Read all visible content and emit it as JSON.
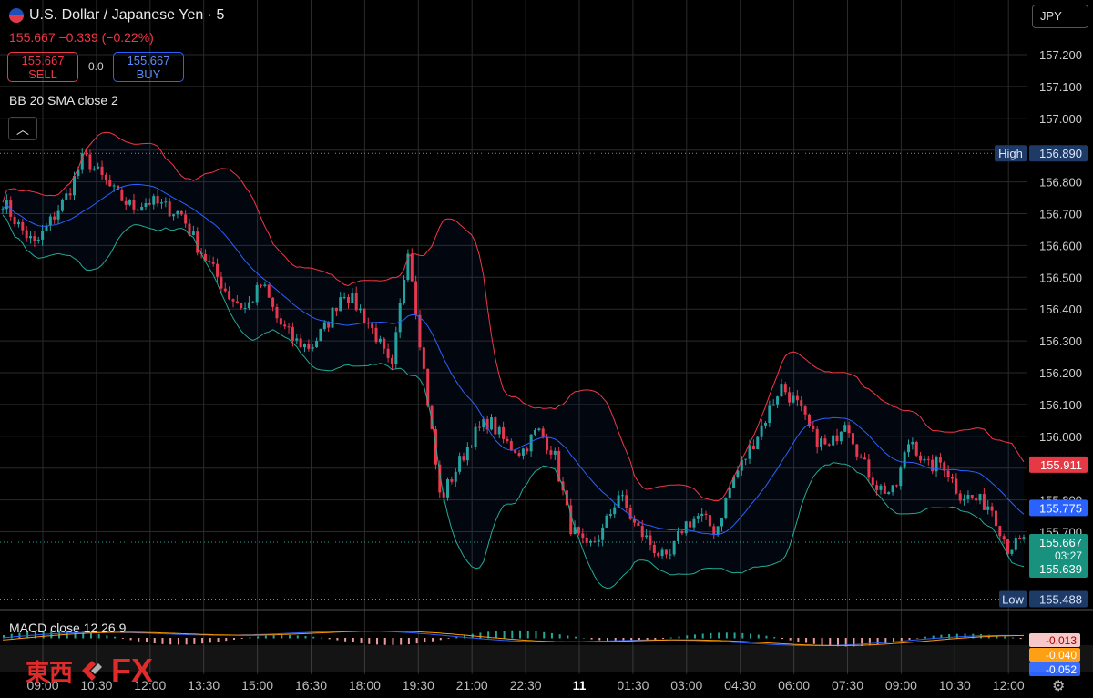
{
  "header": {
    "title": "U.S. Dollar / Japanese Yen · 5",
    "last_price": "155.667",
    "change": "−0.339",
    "change_pct": "(−0.22%)",
    "sell_price": "155.667",
    "sell_label": "SELL",
    "buy_price": "155.667",
    "buy_label": "BUY",
    "spread": "0.0",
    "currency": "JPY"
  },
  "indicator_label": "BB 20 SMA close 2",
  "macd_label": "MACD close 12 26 9",
  "collapse_icon": "chevron-up-icon",
  "settings_icon": "gear-icon",
  "logo": {
    "cjk": "東西",
    "fx": "FX"
  },
  "colors": {
    "up": "#26a69a",
    "down": "#f23645",
    "bb_upper": "#f23645",
    "bb_basis": "#2962ff",
    "bb_lower": "#22ab94",
    "macd_line": "#2962ff",
    "signal_line": "#ff9800"
  },
  "chart_data": {
    "type": "candlestick",
    "y_axis": {
      "range": [
        155.45,
        157.3
      ],
      "ticks": [
        "157.200",
        "157.100",
        "157.000",
        "156.900",
        "156.800",
        "156.700",
        "156.600",
        "156.500",
        "156.400",
        "156.300",
        "156.200",
        "156.100",
        "156.000",
        "155.900",
        "155.800",
        "155.700"
      ]
    },
    "x_axis": {
      "ticks": [
        "09:00",
        "10:30",
        "12:00",
        "13:30",
        "15:00",
        "16:30",
        "18:00",
        "19:30",
        "21:00",
        "22:30",
        "11",
        "01:30",
        "03:00",
        "04:30",
        "06:00",
        "07:30",
        "09:00",
        "10:30",
        "12:00"
      ]
    },
    "price_path": [
      156.74,
      156.66,
      156.6,
      156.68,
      156.76,
      156.88,
      156.82,
      156.76,
      156.72,
      156.74,
      156.72,
      156.7,
      156.6,
      156.52,
      156.44,
      156.4,
      156.48,
      156.36,
      156.3,
      156.28,
      156.35,
      156.46,
      156.4,
      156.32,
      156.2,
      156.6,
      156.2,
      155.8,
      155.9,
      156.0,
      156.05,
      155.98,
      155.95,
      156.02,
      155.95,
      155.72,
      155.64,
      155.7,
      155.82,
      155.72,
      155.66,
      155.6,
      155.72,
      155.75,
      155.7,
      155.86,
      155.95,
      156.05,
      156.16,
      156.1,
      156.0,
      155.96,
      156.06,
      155.92,
      155.84,
      155.82,
      156.0,
      155.9,
      155.92,
      155.82,
      155.8,
      155.78,
      155.65,
      155.67
    ],
    "labels": {
      "high_label": "High",
      "high_value": "156.890",
      "low_label": "Low",
      "low_value": "155.488",
      "bb_upper_value": "155.911",
      "bb_basis_value": "155.775",
      "current_price": "155.667",
      "countdown": "03:27",
      "bb_lower_value": "155.639"
    },
    "macd": {
      "values": [
        "-0.013",
        "-0.040",
        "-0.052"
      ]
    }
  }
}
